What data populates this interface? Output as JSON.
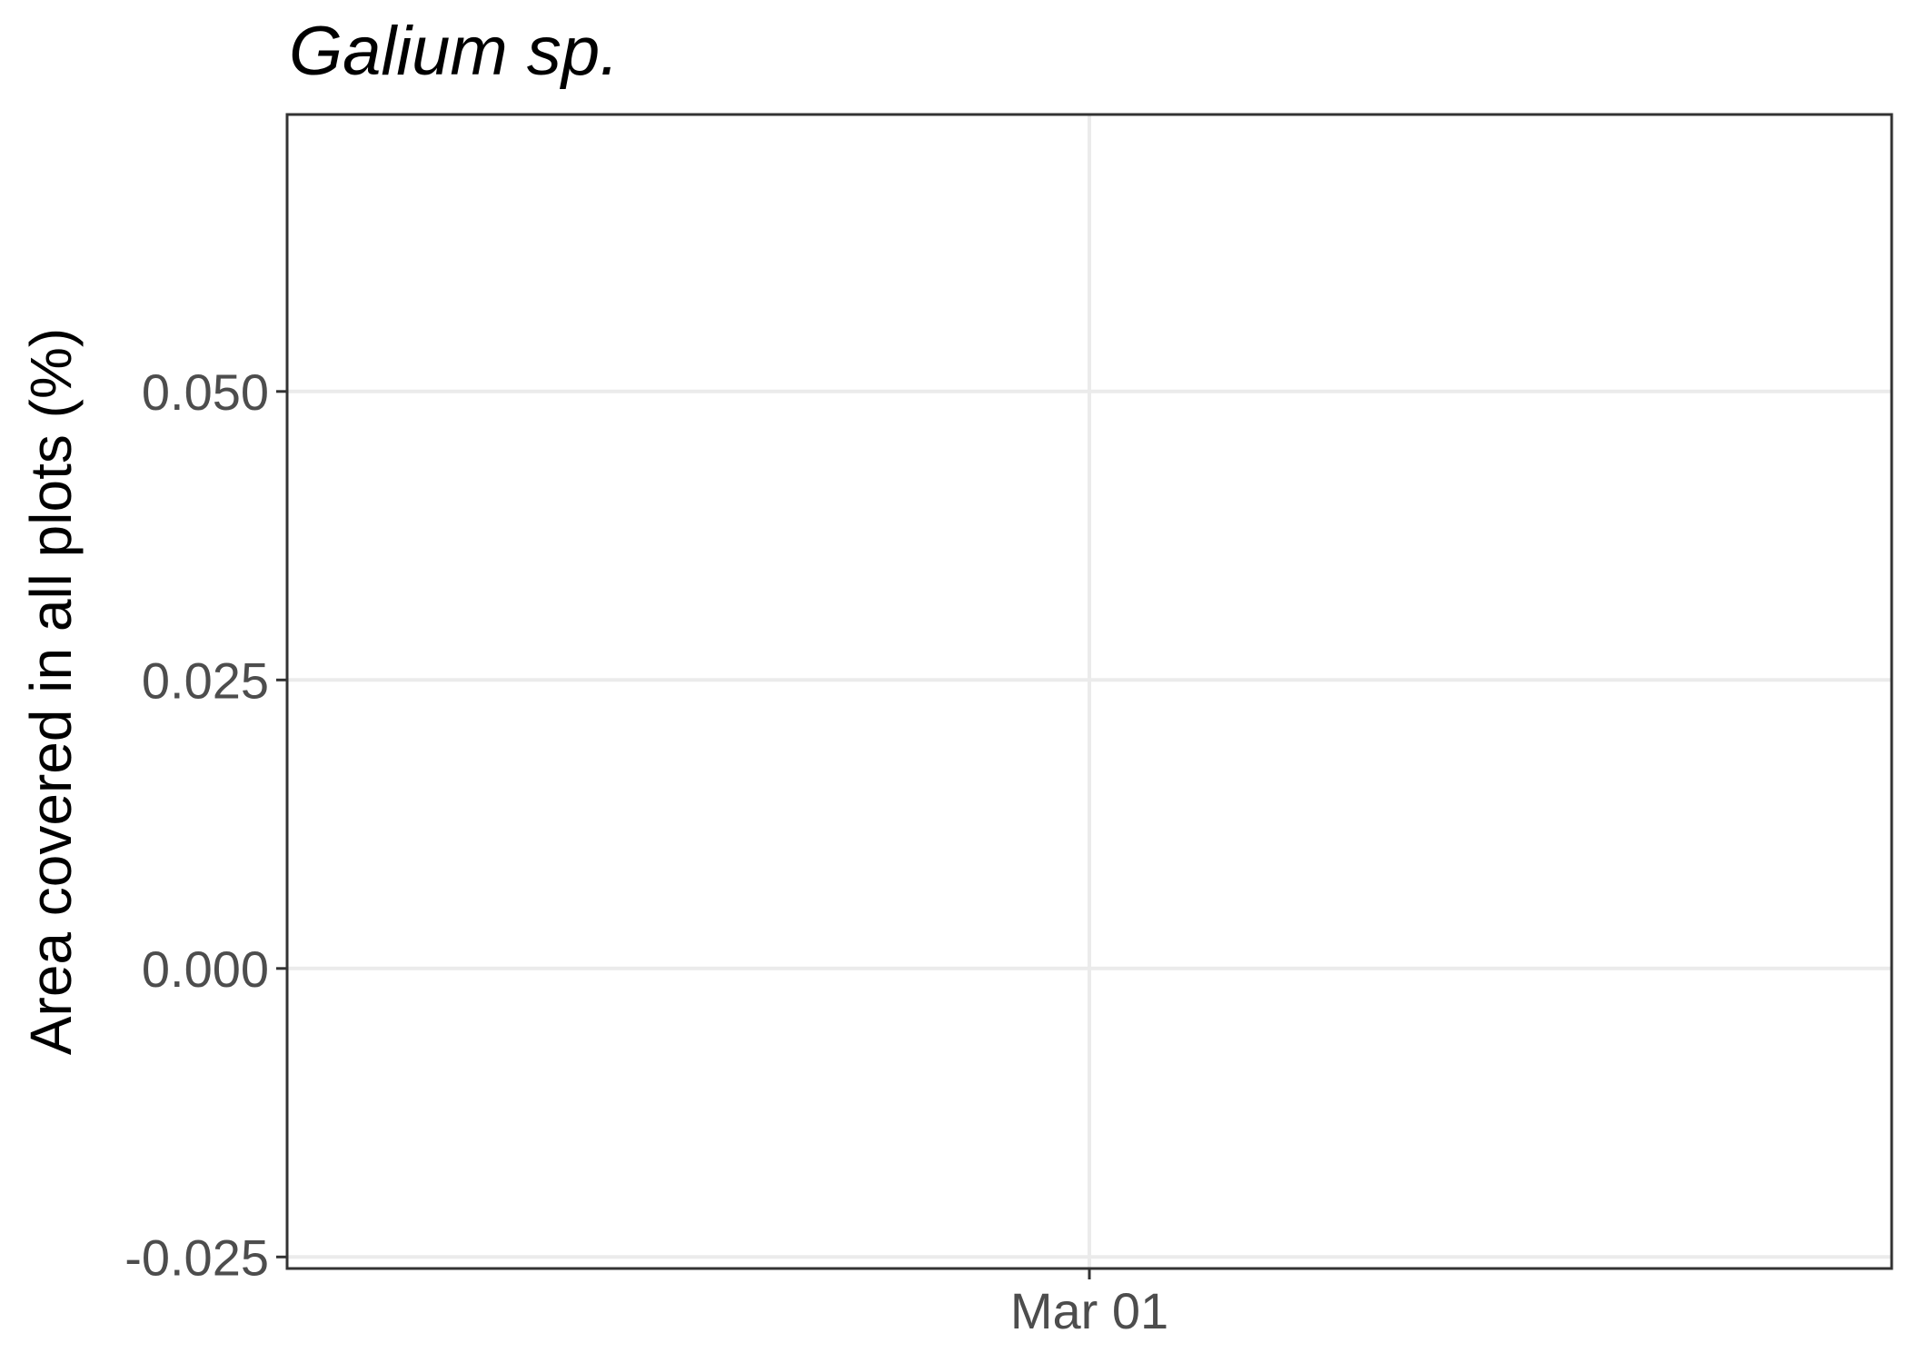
{
  "chart_data": {
    "type": "line",
    "title": "Galium sp.",
    "ylabel": "Area covered in all plots (%)",
    "xlabel": "",
    "x_ticks": [
      "Mar 01"
    ],
    "y_ticks": [
      -0.025,
      0.0,
      0.025,
      0.05
    ],
    "y_tick_labels": [
      "-0.025",
      "0.000",
      "0.025",
      "0.050"
    ],
    "ylim": [
      -0.026,
      0.074
    ],
    "grid": true,
    "series": []
  }
}
